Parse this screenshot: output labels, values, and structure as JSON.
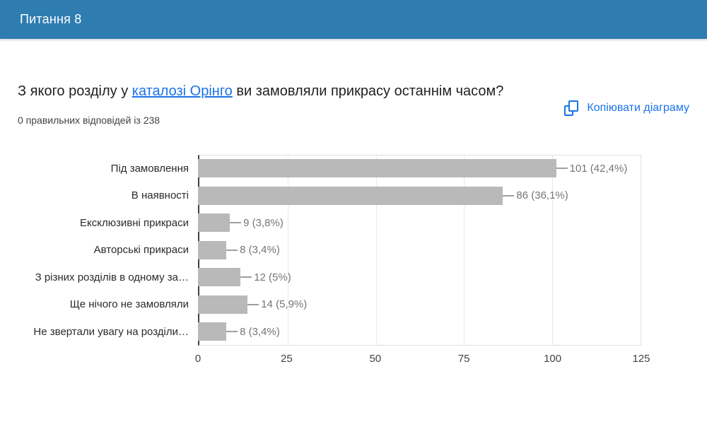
{
  "header": {
    "title": "Питання 8"
  },
  "toolbar": {
    "copy_button_label": "Копіювати діаграму"
  },
  "question": {
    "text_before_link": "З якого розділу у ",
    "link_text": "каталозі Орінго",
    "text_after_link": " ви замовляли прикрасу останнім часом?",
    "stats_text": "0 правильних відповідей із 238"
  },
  "chart_data": {
    "type": "bar",
    "orientation": "horizontal",
    "categories": [
      "Під замовлення",
      "В наявності",
      "Ексклюзивні прикраси",
      "Авторські прикраси",
      "З різних розділів в одному за…",
      "Ще нічого не замовляли",
      "Не звертали увагу на розділи…"
    ],
    "values": [
      101,
      86,
      9,
      8,
      12,
      14,
      8
    ],
    "value_labels": [
      "101 (42,4%)",
      "86 (36,1%)",
      "9 (3,8%)",
      "8 (3,4%)",
      "12 (5%)",
      "14 (5,9%)",
      "8 (3,4%)"
    ],
    "x_ticks": [
      0,
      25,
      50,
      75,
      100,
      125
    ],
    "xlim": [
      0,
      125
    ],
    "total_responses": 238,
    "grid": true,
    "legend": "none",
    "bar_color": "#b9b9b9",
    "gridline_color": "#e9e9e9"
  },
  "colors": {
    "header_blue": "#2e7cb0",
    "accent_blue": "#1a73e8",
    "bar_gray": "#b9b9b9",
    "value_text_gray": "#757575"
  }
}
